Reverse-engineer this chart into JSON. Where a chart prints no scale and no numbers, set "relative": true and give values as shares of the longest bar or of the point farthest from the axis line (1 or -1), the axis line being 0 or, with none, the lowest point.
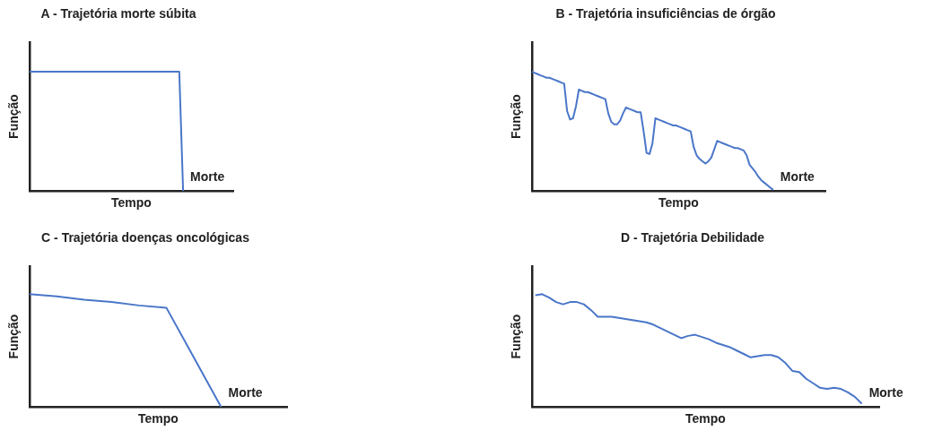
{
  "chart_data": [
    {
      "type": "line",
      "title": "A - Trajetória morte súbita",
      "xlabel": "Tempo",
      "ylabel": "Função",
      "relative": true,
      "tick_labels": false,
      "marker": "none",
      "color": "#4a76c9",
      "categories": [
        null,
        null,
        null,
        null,
        null,
        null,
        null,
        null,
        null,
        null,
        null,
        null,
        null,
        null,
        null,
        null,
        null,
        null,
        null,
        null,
        null,
        null,
        null,
        null,
        null,
        null,
        null,
        null,
        null,
        null,
        null,
        null,
        null,
        null,
        null,
        null,
        null,
        null,
        null,
        null,
        null
      ],
      "values": [
        1,
        1,
        1,
        1,
        1,
        1,
        1,
        1,
        1,
        1,
        1,
        1,
        1,
        1,
        1,
        1,
        1,
        1,
        1,
        1,
        1,
        1,
        1,
        1,
        1,
        1,
        1,
        1,
        1,
        1,
        1,
        1,
        1,
        1,
        1,
        1,
        1,
        1,
        1,
        1,
        0
      ],
      "annotations": [
        "Morte"
      ]
    },
    {
      "type": "line",
      "title": "B - Trajetória insuficiências de órgão",
      "xlabel": "Tempo",
      "ylabel": "Função",
      "relative": true,
      "tick_labels": false,
      "marker": "none",
      "color": "#4a76c9",
      "categories": [
        null,
        null,
        null,
        null,
        null,
        null,
        null,
        null,
        null,
        null,
        null,
        null,
        null,
        null,
        null,
        null,
        null,
        null,
        null,
        null,
        null,
        null,
        null,
        null,
        null,
        null,
        null,
        null,
        null,
        null,
        null,
        null,
        null,
        null,
        null,
        null,
        null,
        null,
        null,
        null,
        null,
        null,
        null,
        null,
        null,
        null,
        null,
        null,
        null,
        null,
        null,
        null,
        null,
        null,
        null,
        null,
        null,
        null,
        null,
        null,
        null,
        null,
        null,
        null,
        null,
        null,
        null,
        null,
        null,
        null,
        null,
        null,
        null,
        null,
        null,
        null,
        null,
        null,
        null,
        null,
        null,
        null,
        null
      ],
      "values": [
        1,
        0.99,
        0.98,
        0.97,
        0.96,
        0.95,
        0.95,
        0.94,
        0.93,
        0.92,
        0.91,
        0.9,
        0.67,
        0.6,
        0.61,
        0.71,
        0.85,
        0.84,
        0.83,
        0.83,
        0.82,
        0.81,
        0.8,
        0.79,
        0.78,
        0.77,
        0.65,
        0.58,
        0.56,
        0.56,
        0.59,
        0.65,
        0.7,
        0.69,
        0.68,
        0.67,
        0.66,
        0.66,
        0.5,
        0.32,
        0.31,
        0.4,
        0.61,
        0.6,
        0.59,
        0.58,
        0.57,
        0.56,
        0.55,
        0.55,
        0.54,
        0.53,
        0.52,
        0.51,
        0.5,
        0.37,
        0.3,
        0.27,
        0.25,
        0.23,
        0.25,
        0.28,
        0.35,
        0.42,
        0.41,
        0.4,
        0.39,
        0.38,
        0.37,
        0.36,
        0.36,
        0.35,
        0.34,
        0.3,
        0.22,
        0.19,
        0.16,
        0.12,
        0.09,
        0.07,
        0.05,
        0.03,
        0.01
      ],
      "annotations": [
        "Morte"
      ]
    },
    {
      "type": "line",
      "title": "C - Trajetória doenças oncológicas",
      "xlabel": "Tempo",
      "ylabel": "Função",
      "relative": true,
      "tick_labels": false,
      "marker": "none",
      "color": "#4a76c9",
      "categories": [
        null,
        null,
        null,
        null,
        null,
        null,
        null,
        null
      ],
      "values": [
        1,
        0.98,
        0.95,
        0.93,
        0.9,
        0.88,
        0.44,
        0
      ],
      "annotations": [
        "Morte"
      ]
    },
    {
      "type": "line",
      "title": "D - Trajetória Debilidade",
      "xlabel": "Tempo",
      "ylabel": "Função",
      "relative": true,
      "tick_labels": false,
      "marker": "none",
      "color": "#4a76c9",
      "categories": [
        null,
        null,
        null,
        null,
        null,
        null,
        null,
        null,
        null,
        null,
        null,
        null,
        null,
        null,
        null,
        null,
        null,
        null,
        null,
        null,
        null,
        null,
        null,
        null,
        null,
        null,
        null,
        null,
        null,
        null,
        null,
        null,
        null,
        null,
        null,
        null,
        null,
        null,
        null,
        null,
        null,
        null,
        null,
        null,
        null,
        null,
        null,
        null
      ],
      "values": [
        0.99,
        1,
        0.97,
        0.93,
        0.91,
        0.93,
        0.93,
        0.91,
        0.86,
        0.8,
        0.8,
        0.8,
        0.79,
        0.78,
        0.77,
        0.76,
        0.75,
        0.73,
        0.7,
        0.67,
        0.64,
        0.61,
        0.63,
        0.64,
        0.62,
        0.6,
        0.57,
        0.55,
        0.53,
        0.5,
        0.47,
        0.44,
        0.45,
        0.46,
        0.46,
        0.44,
        0.39,
        0.32,
        0.31,
        0.25,
        0.21,
        0.17,
        0.16,
        0.17,
        0.16,
        0.13,
        0.09,
        0.03
      ],
      "annotations": [
        "Morte"
      ]
    }
  ]
}
